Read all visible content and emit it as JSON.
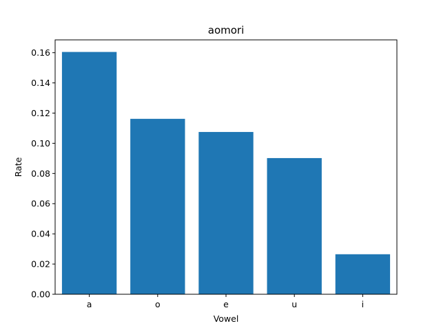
{
  "chart_data": {
    "type": "bar",
    "title": "aomori",
    "xlabel": "Vowel",
    "ylabel": "Rate",
    "categories": [
      "a",
      "o",
      "e",
      "u",
      "i"
    ],
    "values": [
      0.1605,
      0.1162,
      0.1075,
      0.0902,
      0.0265
    ],
    "ylim": [
      0,
      0.1685
    ],
    "yticks": [
      0.0,
      0.02,
      0.04,
      0.06,
      0.08,
      0.1,
      0.12,
      0.14,
      0.16
    ],
    "ytick_labels": [
      "0.00",
      "0.02",
      "0.04",
      "0.06",
      "0.08",
      "0.10",
      "0.12",
      "0.14",
      "0.16"
    ],
    "grid": false,
    "bar_color": "#1f77b4"
  }
}
